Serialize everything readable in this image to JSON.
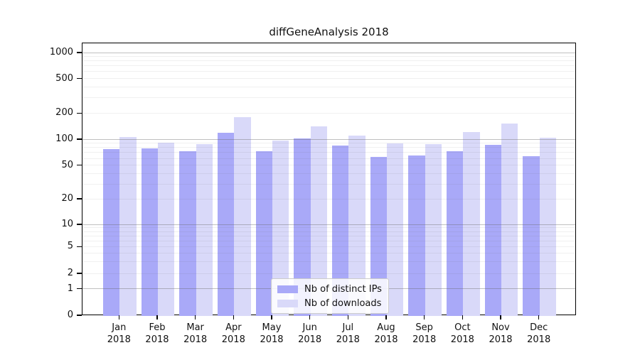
{
  "title": "diffGeneAnalysis 2018",
  "chart_data": {
    "type": "bar",
    "title": "diffGeneAnalysis 2018",
    "categories": [
      "Jan",
      "Feb",
      "Mar",
      "Apr",
      "May",
      "Jun",
      "Jul",
      "Aug",
      "Sep",
      "Oct",
      "Nov",
      "Dec"
    ],
    "x_year": "2018",
    "series": [
      {
        "name": "Nb of distinct IPs",
        "color": "#a9a9f8",
        "values": [
          78,
          79,
          74,
          120,
          74,
          103,
          86,
          64,
          66,
          74,
          87,
          65
        ]
      },
      {
        "name": "Nb of downloads",
        "color": "#d9d9f9",
        "values": [
          108,
          93,
          90,
          184,
          99,
          144,
          112,
          91,
          89,
          122,
          155,
          106
        ]
      }
    ],
    "y_ticks": [
      1000,
      500,
      200,
      100,
      50,
      20,
      10,
      5,
      2,
      1,
      0
    ],
    "y_scale": "symlog",
    "ylim": [
      0,
      1000
    ],
    "grid": true,
    "legend_position": "lower-center"
  }
}
